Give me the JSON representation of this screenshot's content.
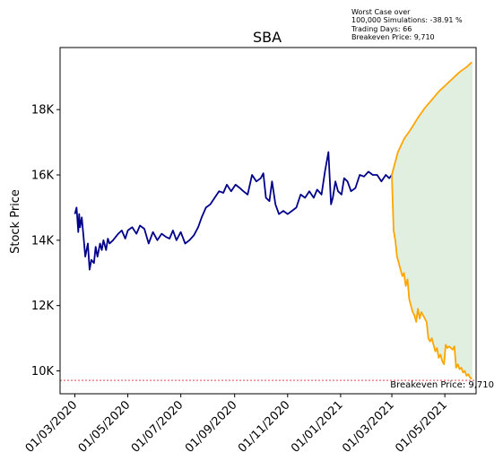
{
  "chart_data": {
    "type": "line",
    "title": "SBA",
    "xlabel": "",
    "ylabel": "Stock Price",
    "ylim": [
      9300,
      19900
    ],
    "xlim": [
      "2020-02-13",
      "2021-06-06"
    ],
    "yticks": [
      10000,
      12000,
      14000,
      16000,
      18000
    ],
    "ytick_labels": [
      "10K",
      "12K",
      "14K",
      "16K",
      "18K"
    ],
    "xticks": [
      "2020-03-01",
      "2020-05-01",
      "2020-07-01",
      "2020-09-01",
      "2020-11-01",
      "2021-01-01",
      "2021-03-01",
      "2021-05-01"
    ],
    "xtick_labels": [
      "01/03/2020",
      "01/05/2020",
      "01/07/2020",
      "01/09/2020",
      "01/11/2020",
      "01/01/2021",
      "01/03/2021",
      "01/05/2021"
    ],
    "grid": false,
    "colors": {
      "history": "#00008b",
      "projection": "#ffa500",
      "band_fill": "#e1efe0",
      "breakeven_line": "#d62728"
    },
    "breakeven": {
      "value": 9710,
      "label": "Breakeven Price: 9,710"
    },
    "series": [
      {
        "role": "historical",
        "x": [
          "2020-03-01",
          "2020-03-03",
          "2020-03-05",
          "2020-03-06",
          "2020-03-07",
          "2020-03-09",
          "2020-03-11",
          "2020-03-13",
          "2020-03-16",
          "2020-03-18",
          "2020-03-20",
          "2020-03-23",
          "2020-03-25",
          "2020-03-27",
          "2020-03-30",
          "2020-04-01",
          "2020-04-03",
          "2020-04-06",
          "2020-04-08",
          "2020-04-10",
          "2020-04-14",
          "2020-04-17",
          "2020-04-20",
          "2020-04-24",
          "2020-04-28",
          "2020-05-01",
          "2020-05-06",
          "2020-05-11",
          "2020-05-15",
          "2020-05-20",
          "2020-05-25",
          "2020-05-30",
          "2020-06-04",
          "2020-06-09",
          "2020-06-14",
          "2020-06-18",
          "2020-06-22",
          "2020-06-26",
          "2020-07-01",
          "2020-07-06",
          "2020-07-11",
          "2020-07-16",
          "2020-07-21",
          "2020-07-25",
          "2020-07-30",
          "2020-08-04",
          "2020-08-09",
          "2020-08-14",
          "2020-08-19",
          "2020-08-23",
          "2020-08-28",
          "2020-09-02",
          "2020-09-07",
          "2020-09-11",
          "2020-09-16",
          "2020-09-21",
          "2020-09-26",
          "2020-10-01",
          "2020-10-04",
          "2020-10-07",
          "2020-10-11",
          "2020-10-14",
          "2020-10-18",
          "2020-10-22",
          "2020-10-27",
          "2020-11-01",
          "2020-11-06",
          "2020-11-11",
          "2020-11-16",
          "2020-11-21",
          "2020-11-26",
          "2020-12-01",
          "2020-12-05",
          "2020-12-10",
          "2020-12-14",
          "2020-12-18",
          "2020-12-21",
          "2020-12-23",
          "2020-12-26",
          "2020-12-29",
          "2021-01-02",
          "2021-01-05",
          "2021-01-09",
          "2021-01-13",
          "2021-01-18",
          "2021-01-23",
          "2021-01-28",
          "2021-02-02",
          "2021-02-07",
          "2021-02-12",
          "2021-02-17",
          "2021-02-22",
          "2021-02-26",
          "2021-03-01"
        ],
        "values": [
          14800,
          15000,
          14250,
          14800,
          14400,
          14700,
          14100,
          13500,
          13900,
          13100,
          13400,
          13300,
          13800,
          13500,
          13900,
          13700,
          14000,
          13700,
          14050,
          13900,
          14000,
          14100,
          14200,
          14300,
          14050,
          14300,
          14400,
          14200,
          14450,
          14350,
          13900,
          14250,
          14000,
          14200,
          14100,
          14050,
          14300,
          14000,
          14250,
          13900,
          14000,
          14150,
          14400,
          14700,
          15000,
          15100,
          15300,
          15500,
          15450,
          15700,
          15500,
          15700,
          15600,
          15500,
          15400,
          16000,
          15800,
          15900,
          16050,
          15300,
          15200,
          15800,
          15100,
          14800,
          14900,
          14800,
          14900,
          15000,
          15400,
          15300,
          15500,
          15300,
          15550,
          15400,
          16100,
          16700,
          15100,
          15300,
          15800,
          15500,
          15400,
          15900,
          15800,
          15500,
          15600,
          16000,
          15950,
          16100,
          16000,
          16000,
          15800,
          16000,
          15900,
          16000
        ]
      },
      {
        "role": "projection_upper",
        "x": [
          "2021-03-01",
          "2021-03-08",
          "2021-03-15",
          "2021-03-23",
          "2021-03-31",
          "2021-04-08",
          "2021-04-16",
          "2021-04-24",
          "2021-05-02",
          "2021-05-10",
          "2021-05-18",
          "2021-05-26",
          "2021-06-01"
        ],
        "values": [
          16000,
          16700,
          17100,
          17400,
          17750,
          18050,
          18300,
          18550,
          18750,
          18950,
          19150,
          19300,
          19450
        ]
      },
      {
        "role": "projection_lower",
        "x": [
          "2021-03-01",
          "2021-03-03",
          "2021-03-05",
          "2021-03-07",
          "2021-03-09",
          "2021-03-11",
          "2021-03-13",
          "2021-03-15",
          "2021-03-17",
          "2021-03-19",
          "2021-03-21",
          "2021-03-23",
          "2021-03-25",
          "2021-03-27",
          "2021-03-29",
          "2021-03-31",
          "2021-04-02",
          "2021-04-04",
          "2021-04-06",
          "2021-04-08",
          "2021-04-10",
          "2021-04-12",
          "2021-04-14",
          "2021-04-16",
          "2021-04-18",
          "2021-04-20",
          "2021-04-22",
          "2021-04-24",
          "2021-04-26",
          "2021-04-28",
          "2021-04-30",
          "2021-05-02",
          "2021-05-04",
          "2021-05-06",
          "2021-05-08",
          "2021-05-10",
          "2021-05-12",
          "2021-05-14",
          "2021-05-16",
          "2021-05-18",
          "2021-05-20",
          "2021-05-22",
          "2021-05-24",
          "2021-05-26",
          "2021-05-28",
          "2021-05-30",
          "2021-06-01"
        ],
        "values": [
          16000,
          14300,
          14000,
          13500,
          13300,
          13100,
          12900,
          13000,
          12600,
          12800,
          12200,
          12000,
          11800,
          11700,
          11500,
          11900,
          11600,
          11800,
          11700,
          11600,
          11500,
          11000,
          10900,
          11000,
          10800,
          10600,
          10700,
          10400,
          10500,
          10300,
          10200,
          10800,
          10700,
          10750,
          10700,
          10650,
          10750,
          10100,
          10200,
          10050,
          10100,
          9950,
          10000,
          9850,
          9900,
          9800,
          9750
        ]
      }
    ]
  },
  "annotation": {
    "line1": "Worst Case over",
    "line2": "100,000 Simulations: -38.91 %",
    "line3": "Trading Days: 66",
    "line4": "Breakeven Price: 9,710"
  }
}
